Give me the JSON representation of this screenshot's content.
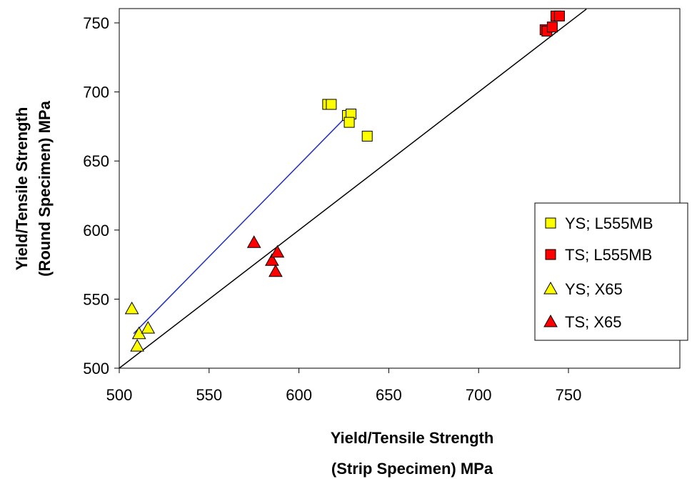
{
  "chart_data": {
    "type": "scatter",
    "xlabel": [
      "Yield/Tensile Strength",
      "(Strip Specimen) MPa"
    ],
    "ylabel": [
      "Yield/Tensile Strength",
      "(Round Specimen) MPa"
    ],
    "xlim": [
      500,
      750
    ],
    "ylim": [
      500,
      750
    ],
    "x_ticks": [
      "500",
      "550",
      "600",
      "650",
      "700",
      "750"
    ],
    "y_ticks": [
      "500",
      "550",
      "600",
      "650",
      "700",
      "750"
    ],
    "grid": false,
    "legend_position": "right",
    "series": [
      {
        "name": "YS; L555MB",
        "marker": "square",
        "color": "#FFFF00",
        "points": [
          [
            616,
            691
          ],
          [
            618,
            691
          ],
          [
            627,
            683
          ],
          [
            629,
            684
          ],
          [
            628,
            678
          ],
          [
            638,
            668
          ]
        ]
      },
      {
        "name": "TS; L555MB",
        "marker": "square",
        "color": "#FF0000",
        "points": [
          [
            737,
            745
          ],
          [
            738,
            744
          ],
          [
            741,
            747
          ],
          [
            743,
            755
          ],
          [
            745,
            755
          ]
        ]
      },
      {
        "name": "YS; X65",
        "marker": "triangle",
        "color": "#FFFF00",
        "points": [
          [
            507,
            543
          ],
          [
            511,
            525
          ],
          [
            516,
            529
          ],
          [
            510,
            516
          ]
        ]
      },
      {
        "name": "TS; X65",
        "marker": "triangle",
        "color": "#FF0000",
        "points": [
          [
            575,
            591
          ],
          [
            585,
            578
          ],
          [
            588,
            584
          ],
          [
            587,
            570
          ]
        ]
      }
    ],
    "lines": [
      {
        "color": "#000000",
        "from": [
          500,
          500
        ],
        "to": [
          760,
          760
        ]
      },
      {
        "color": "#2030C0",
        "from": [
          508,
          525
        ],
        "to": [
          627,
          683
        ]
      }
    ]
  }
}
